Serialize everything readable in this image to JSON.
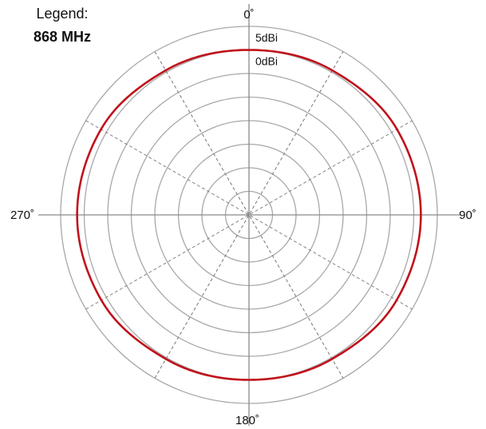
{
  "chart_data": {
    "type": "polar",
    "title": "",
    "legend": {
      "title": "Legend:",
      "position": "top-left"
    },
    "angle_axis": {
      "direction": "clockwise",
      "zero_at": "top",
      "labels": [
        {
          "angle": 0,
          "text": "0˚"
        },
        {
          "angle": 90,
          "text": "90˚"
        },
        {
          "angle": 180,
          "text": "180˚"
        },
        {
          "angle": 270,
          "text": "270˚"
        }
      ],
      "spokes_every_deg": 30
    },
    "radial_axis": {
      "unit": "dBi",
      "max": 5,
      "min": -35,
      "ring_step": 5,
      "ring_labels": [
        {
          "value": 5,
          "text": "5dBi"
        },
        {
          "value": 0,
          "text": "0dBi"
        }
      ]
    },
    "grid": true,
    "series": [
      {
        "name": "868 MHz",
        "color": "#c0121b",
        "angles": [
          0,
          30,
          60,
          90,
          120,
          150,
          180,
          210,
          240,
          270,
          300,
          330
        ],
        "gain_dbi": [
          0,
          0.4,
          1.3,
          1.5,
          1.2,
          0.3,
          0,
          0.3,
          1.2,
          1.5,
          1.3,
          0.4
        ]
      }
    ]
  }
}
